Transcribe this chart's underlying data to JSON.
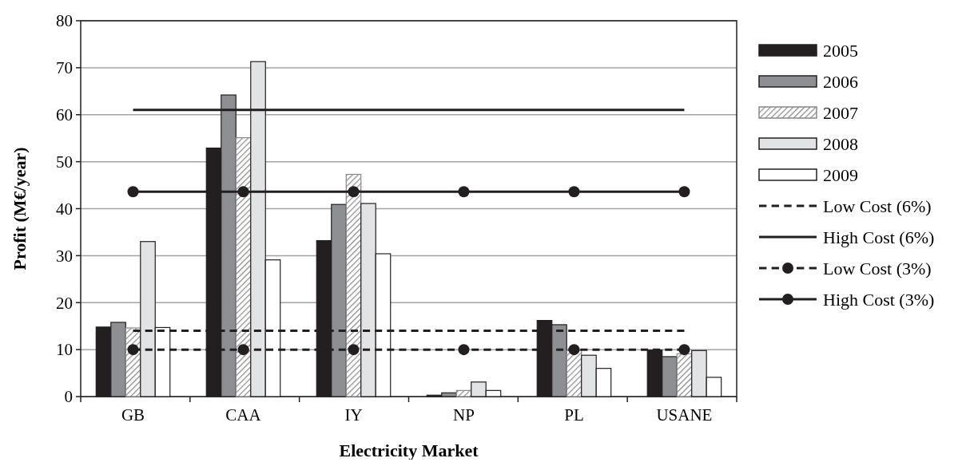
{
  "chart_data": {
    "type": "bar",
    "xlabel": "Electricity Market",
    "ylabel": "Profit (M€/year)",
    "categories": [
      "GB",
      "CAA",
      "IY",
      "NP",
      "PL",
      "USANE"
    ],
    "ylim": [
      0,
      80
    ],
    "yticks": [
      0,
      10,
      20,
      30,
      40,
      50,
      60,
      70,
      80
    ],
    "grid": "y",
    "legend": "right",
    "series": [
      {
        "name": "2005",
        "color": "#231f20",
        "values": [
          14.8,
          52.9,
          33.2,
          0.3,
          16.2,
          9.9
        ]
      },
      {
        "name": "2006",
        "color": "#8e8f93",
        "values": [
          15.8,
          64.2,
          40.9,
          0.8,
          15.3,
          8.5
        ]
      },
      {
        "name": "2007",
        "color": "#888888",
        "values": [
          14.6,
          55.1,
          47.3,
          1.3,
          9.8,
          9.1
        ]
      },
      {
        "name": "2008",
        "color": "#e2e3e5",
        "values": [
          33.0,
          71.3,
          41.1,
          3.1,
          8.8,
          9.8
        ]
      },
      {
        "name": "2009",
        "color": "#ffffff",
        "values": [
          14.7,
          29.1,
          30.4,
          1.3,
          6.0,
          4.1
        ]
      },
      {
        "name": "Low Cost (6%)",
        "type": "line",
        "color": "#231f20",
        "line_style": "dashed",
        "marker": "none",
        "values": [
          14,
          14,
          14,
          14,
          14,
          14
        ]
      },
      {
        "name": "High Cost (6%)",
        "type": "line",
        "color": "#231f20",
        "line_style": "solid",
        "marker": "none",
        "values": [
          61,
          61,
          61,
          61,
          61,
          61
        ]
      },
      {
        "name": "Low Cost (3%)",
        "type": "line",
        "color": "#231f20",
        "line_style": "dashed",
        "marker": "circle",
        "values": [
          10,
          10,
          10,
          10,
          10,
          10
        ]
      },
      {
        "name": "High Cost (3%)",
        "type": "line",
        "color": "#231f20",
        "line_style": "solid",
        "marker": "circle",
        "values": [
          43.6,
          43.6,
          43.6,
          43.6,
          43.6,
          43.6
        ]
      }
    ]
  }
}
